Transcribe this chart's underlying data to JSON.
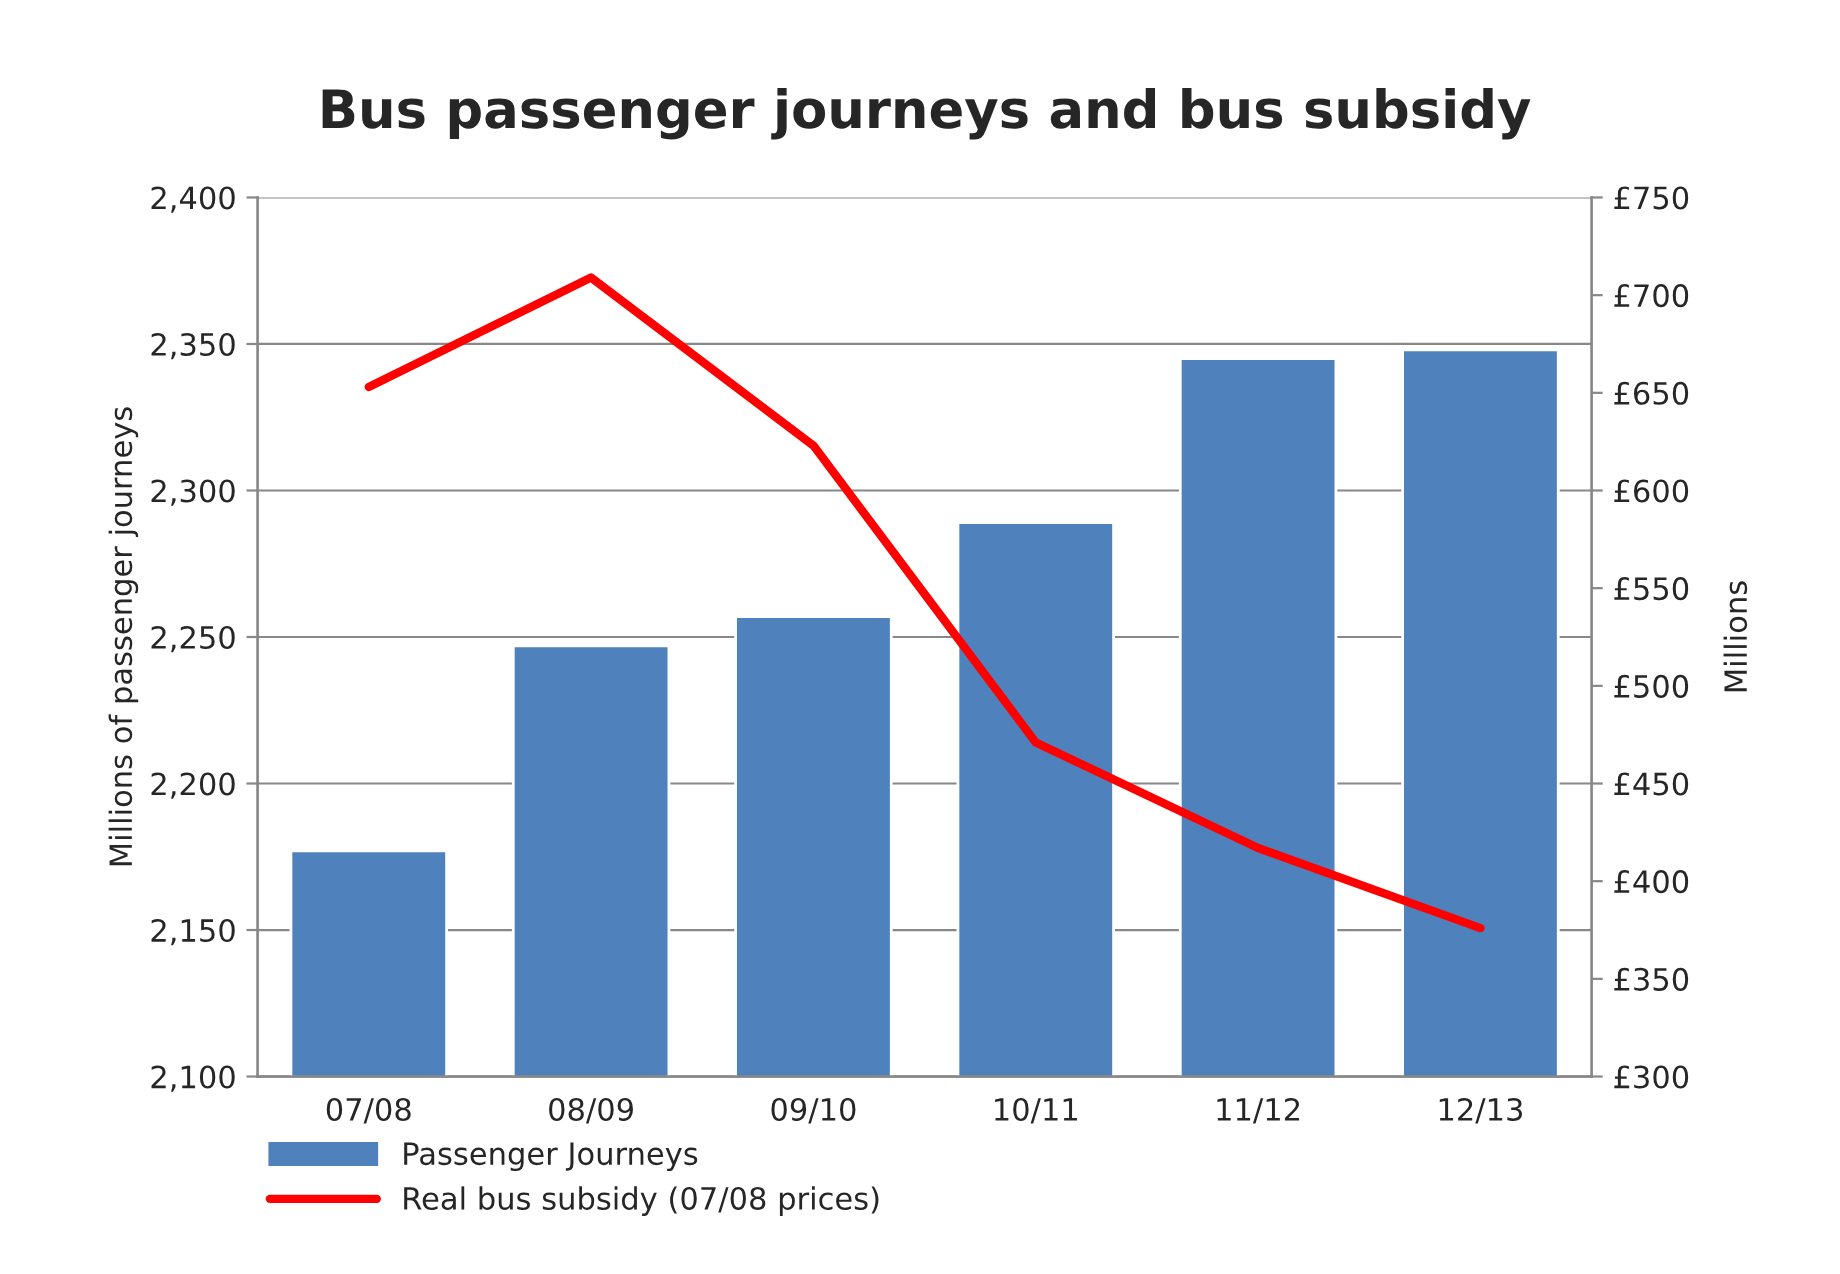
{
  "chart_data": {
    "type": "bar",
    "title": "Bus passenger journeys and bus subsidy",
    "categories": [
      "07/08",
      "08/09",
      "09/10",
      "10/11",
      "11/12",
      "12/13"
    ],
    "series": [
      {
        "name": "Passenger Journeys",
        "color": "#4f81bd",
        "values": [
          2177,
          2247,
          2257,
          2289,
          2345,
          2348
        ]
      },
      {
        "name": "Real bus subsidy (07/08 prices)",
        "type": "line",
        "axis": "y2",
        "color": "#ff0000",
        "values": [
          653,
          709,
          623,
          471,
          417,
          376
        ]
      }
    ],
    "ylabel": "Millions of passenger journeys",
    "y2label": "Millions",
    "ylim": [
      2100,
      2400
    ],
    "yticks": [
      {
        "value": 2100,
        "label": "2,100"
      },
      {
        "value": 2150,
        "label": "2,150"
      },
      {
        "value": 2200,
        "label": "2,200"
      },
      {
        "value": 2250,
        "label": "2,250"
      },
      {
        "value": 2300,
        "label": "2,300"
      },
      {
        "value": 2350,
        "label": "2,350"
      },
      {
        "value": 2400,
        "label": "2,400"
      }
    ],
    "y2lim": [
      300,
      750
    ],
    "y2ticks": [
      {
        "value": 300,
        "label": "£300"
      },
      {
        "value": 350,
        "label": "£350"
      },
      {
        "value": 400,
        "label": "£400"
      },
      {
        "value": 450,
        "label": "£450"
      },
      {
        "value": 500,
        "label": "£500"
      },
      {
        "value": 550,
        "label": "£550"
      },
      {
        "value": 600,
        "label": "£600"
      },
      {
        "value": 650,
        "label": "£650"
      },
      {
        "value": 700,
        "label": "£700"
      },
      {
        "value": 750,
        "label": "£750"
      }
    ],
    "grid": "y",
    "legend": "bottom",
    "marker": "none",
    "line_style": "solid"
  }
}
